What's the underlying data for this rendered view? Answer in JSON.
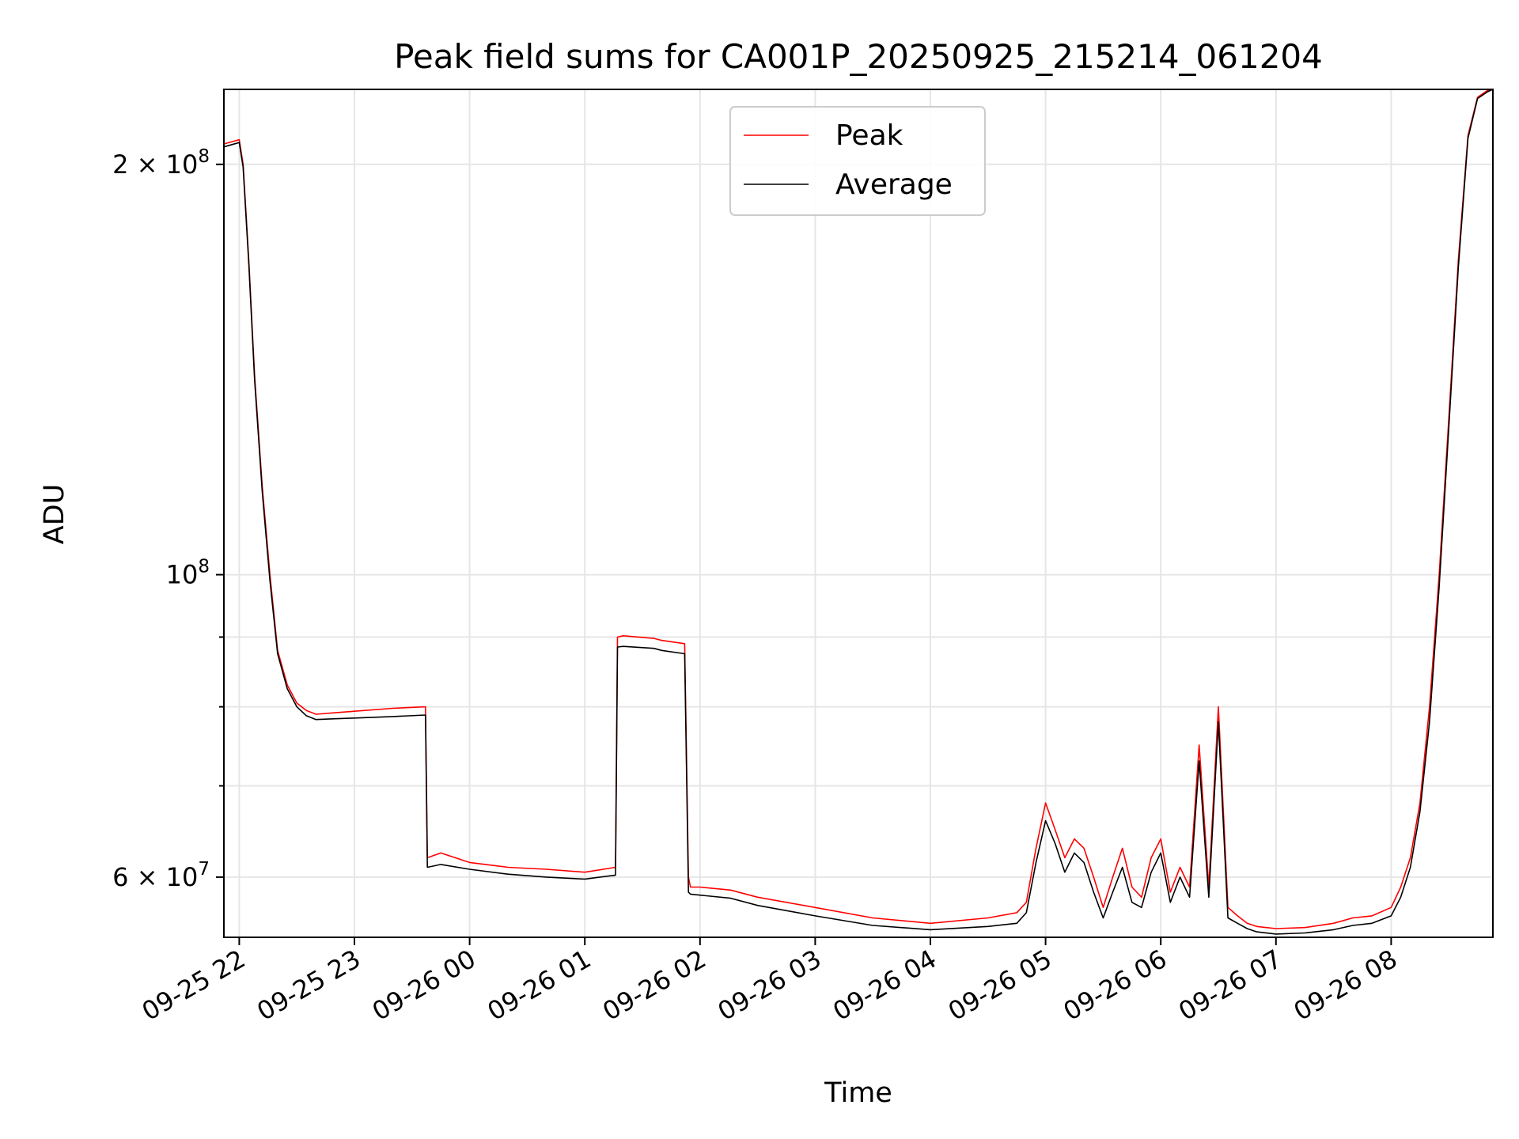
{
  "chart_data": {
    "type": "line",
    "title": "Peak field sums for CA001P_20250925_215214_061204",
    "xlabel": "Time",
    "ylabel": "ADU",
    "y_scale": "log",
    "grid": true,
    "legend_position": "upper center",
    "xlim": [
      "2025-09-25 21:52",
      "2025-09-26 08:53"
    ],
    "ylim": [
      54200000,
      227000000
    ],
    "x_ticks": [
      "2025-09-25 22:00",
      "2025-09-25 23:00",
      "2025-09-26 00:00",
      "2025-09-26 01:00",
      "2025-09-26 02:00",
      "2025-09-26 03:00",
      "2025-09-26 04:00",
      "2025-09-26 05:00",
      "2025-09-26 06:00",
      "2025-09-26 07:00",
      "2025-09-26 08:00"
    ],
    "x_tick_labels": [
      "09-25 22",
      "09-25 23",
      "09-26 00",
      "09-26 01",
      "09-26 02",
      "09-26 03",
      "09-26 04",
      "09-26 05",
      "09-26 06",
      "09-26 07",
      "09-26 08"
    ],
    "y_major_ticks": [
      {
        "value": 200000000,
        "mantissa": "2",
        "exponent": "8"
      },
      {
        "value": 100000000,
        "mantissa": "",
        "exponent": "8"
      },
      {
        "value": 60000000,
        "mantissa": "6",
        "exponent": "7"
      }
    ],
    "y_minor_ticks": [
      70000000,
      80000000,
      90000000
    ],
    "series": [
      {
        "name": "Peak",
        "color": "#ff0000",
        "x": [
          "2025-09-25 21:52",
          "2025-09-25 22:00",
          "2025-09-25 22:02",
          "2025-09-25 22:05",
          "2025-09-25 22:08",
          "2025-09-25 22:12",
          "2025-09-25 22:16",
          "2025-09-25 22:20",
          "2025-09-25 22:25",
          "2025-09-25 22:30",
          "2025-09-25 22:35",
          "2025-09-25 22:40",
          "2025-09-25 22:50",
          "2025-09-25 23:00",
          "2025-09-25 23:20",
          "2025-09-25 23:37",
          "2025-09-25 23:38",
          "2025-09-25 23:45",
          "2025-09-26 00:00",
          "2025-09-26 00:20",
          "2025-09-26 00:40",
          "2025-09-26 01:00",
          "2025-09-26 01:16",
          "2025-09-26 01:17",
          "2025-09-26 01:20",
          "2025-09-26 01:36",
          "2025-09-26 01:40",
          "2025-09-26 01:52",
          "2025-09-26 01:54",
          "2025-09-26 01:55",
          "2025-09-26 02:00",
          "2025-09-26 02:16",
          "2025-09-26 02:30",
          "2025-09-26 03:00",
          "2025-09-26 03:30",
          "2025-09-26 04:00",
          "2025-09-26 04:30",
          "2025-09-26 04:45",
          "2025-09-26 04:50",
          "2025-09-26 04:55",
          "2025-09-26 05:00",
          "2025-09-26 05:05",
          "2025-09-26 05:10",
          "2025-09-26 05:15",
          "2025-09-26 05:20",
          "2025-09-26 05:25",
          "2025-09-26 05:30",
          "2025-09-26 05:35",
          "2025-09-26 05:40",
          "2025-09-26 05:45",
          "2025-09-26 05:50",
          "2025-09-26 05:55",
          "2025-09-26 06:00",
          "2025-09-26 06:05",
          "2025-09-26 06:10",
          "2025-09-26 06:15",
          "2025-09-26 06:20",
          "2025-09-26 06:25",
          "2025-09-26 06:30",
          "2025-09-26 06:35",
          "2025-09-26 06:40",
          "2025-09-26 06:45",
          "2025-09-26 06:50",
          "2025-09-26 07:00",
          "2025-09-26 07:15",
          "2025-09-26 07:30",
          "2025-09-26 07:40",
          "2025-09-26 07:50",
          "2025-09-26 08:00",
          "2025-09-26 08:05",
          "2025-09-26 08:10",
          "2025-09-26 08:15",
          "2025-09-26 08:20",
          "2025-09-26 08:25",
          "2025-09-26 08:30",
          "2025-09-26 08:35",
          "2025-09-26 08:40",
          "2025-09-26 08:45",
          "2025-09-26 08:50",
          "2025-09-26 08:53"
        ],
        "values": [
          207000000,
          208500000,
          200000000,
          170000000,
          140000000,
          116000000,
          100000000,
          88000000,
          83000000,
          80500000,
          79500000,
          79000000,
          79200000,
          79400000,
          79800000,
          80000000,
          62000000,
          62500000,
          61500000,
          61000000,
          60800000,
          60500000,
          61000000,
          90000000,
          90200000,
          89800000,
          89500000,
          89000000,
          60000000,
          59000000,
          59000000,
          58700000,
          58000000,
          57000000,
          56000000,
          55500000,
          56000000,
          56500000,
          57500000,
          63000000,
          68000000,
          65000000,
          62000000,
          64000000,
          63000000,
          60000000,
          57000000,
          60000000,
          63000000,
          59000000,
          58000000,
          62000000,
          64000000,
          58500000,
          61000000,
          59000000,
          75000000,
          59000000,
          80000000,
          57000000,
          56200000,
          55500000,
          55200000,
          55000000,
          55100000,
          55500000,
          56000000,
          56200000,
          57000000,
          59000000,
          62000000,
          68000000,
          80000000,
          100000000,
          130000000,
          170000000,
          210000000,
          224000000,
          226500000,
          227000000
        ]
      },
      {
        "name": "Average",
        "color": "#000000",
        "x": [
          "2025-09-25 21:52",
          "2025-09-25 22:00",
          "2025-09-25 22:02",
          "2025-09-25 22:05",
          "2025-09-25 22:08",
          "2025-09-25 22:12",
          "2025-09-25 22:16",
          "2025-09-25 22:20",
          "2025-09-25 22:25",
          "2025-09-25 22:30",
          "2025-09-25 22:35",
          "2025-09-25 22:40",
          "2025-09-25 22:50",
          "2025-09-25 23:00",
          "2025-09-25 23:20",
          "2025-09-25 23:37",
          "2025-09-25 23:38",
          "2025-09-25 23:45",
          "2025-09-26 00:00",
          "2025-09-26 00:20",
          "2025-09-26 00:40",
          "2025-09-26 01:00",
          "2025-09-26 01:16",
          "2025-09-26 01:17",
          "2025-09-26 01:20",
          "2025-09-26 01:36",
          "2025-09-26 01:40",
          "2025-09-26 01:52",
          "2025-09-26 01:54",
          "2025-09-26 01:55",
          "2025-09-26 02:00",
          "2025-09-26 02:16",
          "2025-09-26 02:30",
          "2025-09-26 03:00",
          "2025-09-26 03:30",
          "2025-09-26 04:00",
          "2025-09-26 04:30",
          "2025-09-26 04:45",
          "2025-09-26 04:50",
          "2025-09-26 04:55",
          "2025-09-26 05:00",
          "2025-09-26 05:05",
          "2025-09-26 05:10",
          "2025-09-26 05:15",
          "2025-09-26 05:20",
          "2025-09-26 05:25",
          "2025-09-26 05:30",
          "2025-09-26 05:35",
          "2025-09-26 05:40",
          "2025-09-26 05:45",
          "2025-09-26 05:50",
          "2025-09-26 05:55",
          "2025-09-26 06:00",
          "2025-09-26 06:05",
          "2025-09-26 06:10",
          "2025-09-26 06:15",
          "2025-09-26 06:20",
          "2025-09-26 06:25",
          "2025-09-26 06:30",
          "2025-09-26 06:35",
          "2025-09-26 06:40",
          "2025-09-26 06:45",
          "2025-09-26 06:50",
          "2025-09-26 07:00",
          "2025-09-26 07:15",
          "2025-09-26 07:30",
          "2025-09-26 07:40",
          "2025-09-26 07:50",
          "2025-09-26 08:00",
          "2025-09-26 08:05",
          "2025-09-26 08:10",
          "2025-09-26 08:15",
          "2025-09-26 08:20",
          "2025-09-26 08:25",
          "2025-09-26 08:30",
          "2025-09-26 08:35",
          "2025-09-26 08:40",
          "2025-09-26 08:45",
          "2025-09-26 08:50",
          "2025-09-26 08:53"
        ],
        "values": [
          206000000,
          207500000,
          199000000,
          169000000,
          139000000,
          115000000,
          99000000,
          87500000,
          82500000,
          80000000,
          78800000,
          78300000,
          78400000,
          78500000,
          78700000,
          78900000,
          61000000,
          61300000,
          60800000,
          60300000,
          60000000,
          59800000,
          60200000,
          88500000,
          88600000,
          88300000,
          88000000,
          87500000,
          58500000,
          58300000,
          58200000,
          57900000,
          57200000,
          56200000,
          55300000,
          54900000,
          55200000,
          55500000,
          56500000,
          61500000,
          66000000,
          63500000,
          60500000,
          62500000,
          61500000,
          58500000,
          56000000,
          58500000,
          61000000,
          57500000,
          57000000,
          60500000,
          62500000,
          57500000,
          60000000,
          58000000,
          73000000,
          58000000,
          78000000,
          56000000,
          55500000,
          55000000,
          54700000,
          54500000,
          54600000,
          54900000,
          55300000,
          55500000,
          56200000,
          58000000,
          61000000,
          67000000,
          78000000,
          98000000,
          128000000,
          168000000,
          209000000,
          223500000,
          226000000,
          227000000
        ]
      }
    ]
  }
}
